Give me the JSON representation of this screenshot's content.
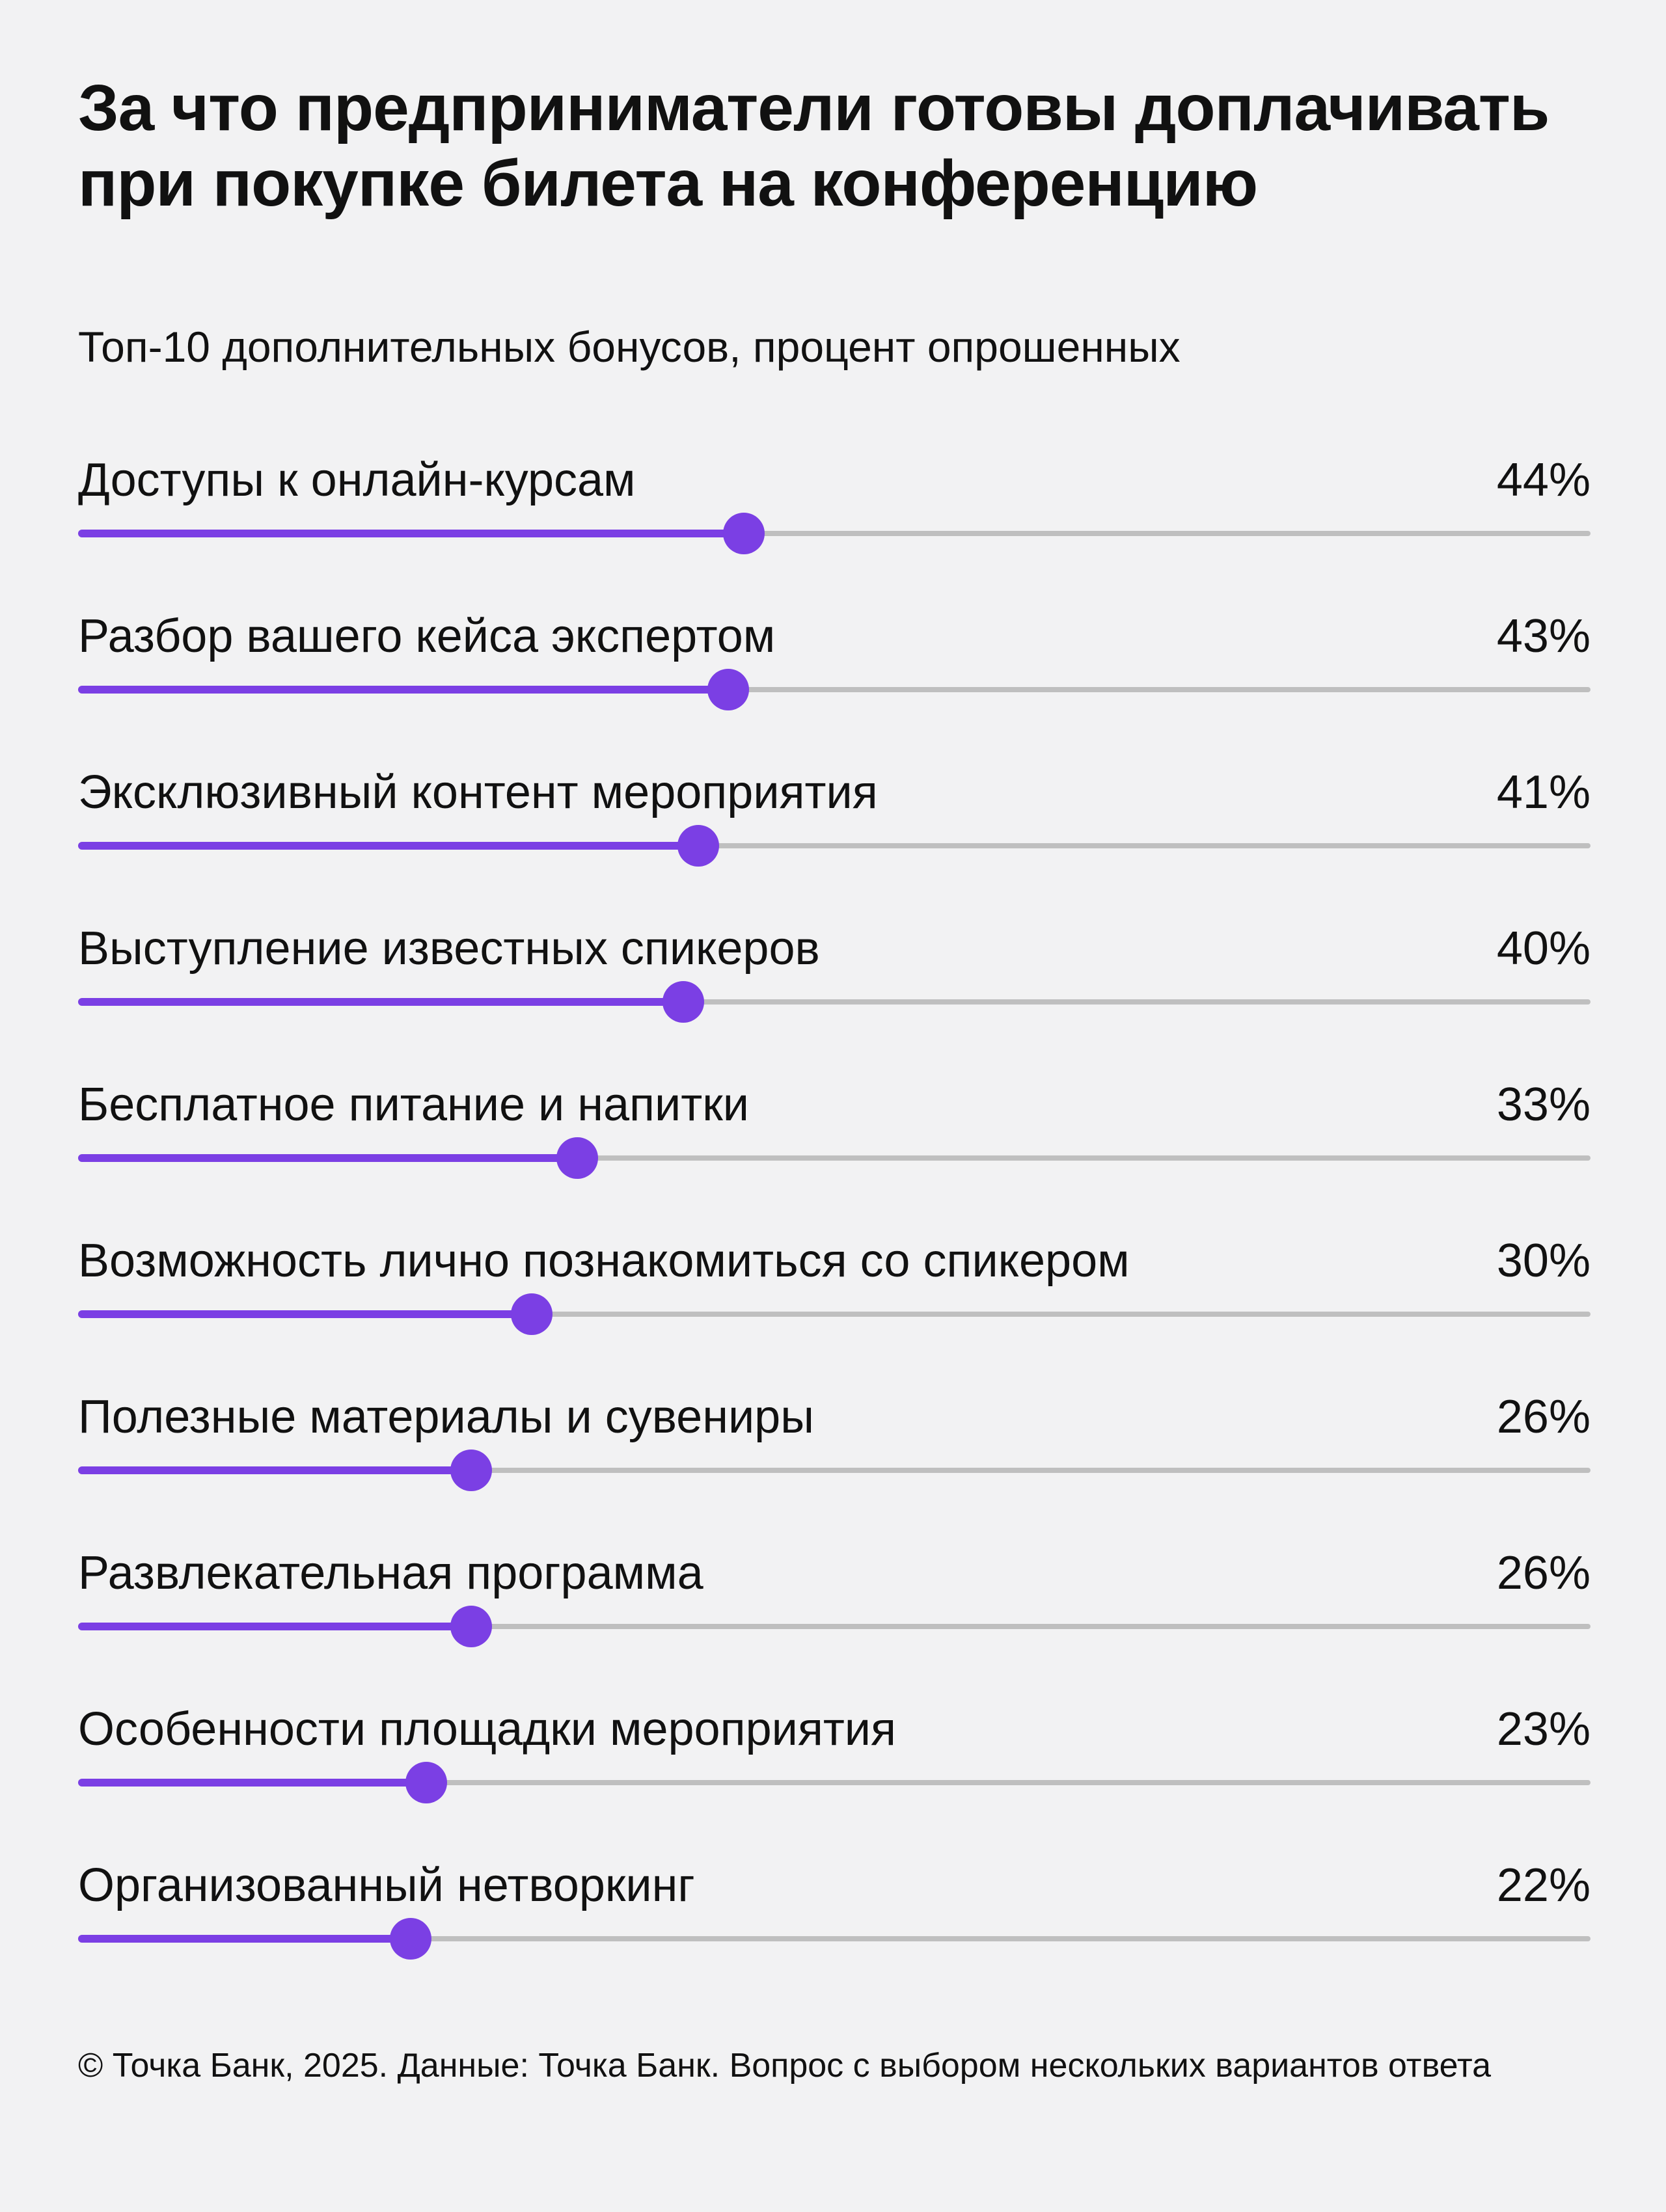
{
  "header": {
    "title": "За что предприниматели готовы доплачивать при покупке билета на конференцию",
    "subtitle": "Топ-10 дополнительных бонусов, процент опрошенных"
  },
  "footnote": "© Точка Банк, 2025. Данные: Точка Банк. Вопрос с выбором нескольких вариантов ответа",
  "colors": {
    "accent": "#7b3fe4",
    "track": "#bfbfbf",
    "background": "#f2f2f3"
  },
  "chart_data": {
    "type": "bar",
    "title": "За что предприниматели готовы доплачивать при покупке билета на конференцию",
    "subtitle": "Топ-10 дополнительных бонусов, процент опрошенных",
    "unit": "%",
    "xlim": [
      0,
      100
    ],
    "categories": [
      "Доступы к онлайн-курсам",
      "Разбор вашего кейса экспертом",
      "Эксклюзивный контент мероприятия",
      "Выступление известных спикеров",
      "Бесплатное питание и напитки",
      "Возможность лично познакомиться со спикером",
      "Полезные материалы и сувениры",
      "Развлекательная программа",
      "Особенности площадки мероприятия",
      "Организованный нетворкинг"
    ],
    "values": [
      44,
      43,
      41,
      40,
      33,
      30,
      26,
      26,
      23,
      22
    ],
    "value_labels": [
      "44%",
      "43%",
      "41%",
      "40%",
      "33%",
      "30%",
      "26%",
      "26%",
      "23%",
      "22%"
    ]
  }
}
